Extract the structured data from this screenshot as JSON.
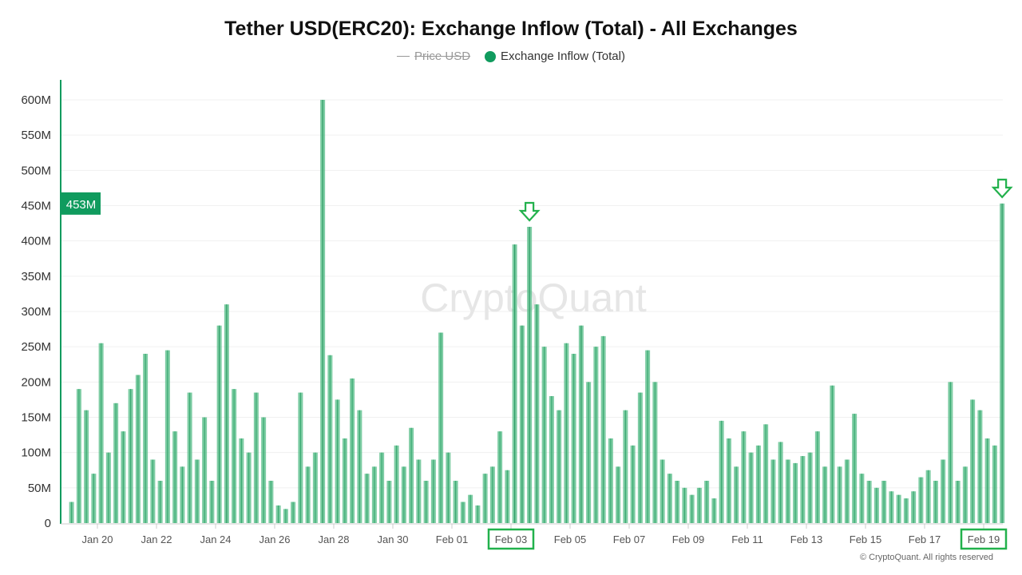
{
  "chart_data": {
    "type": "bar",
    "title": "Tether USD(ERC20): Exchange Inflow (Total) - All Exchanges",
    "legend": [
      {
        "label": "Price USD",
        "hidden": true,
        "color": "#999999"
      },
      {
        "label": "Exchange Inflow (Total)",
        "hidden": false,
        "color": "#109b5e"
      }
    ],
    "legend_placement": "top-center",
    "grid": true,
    "ylim": [
      0,
      630
    ],
    "y_unit": "M",
    "y_ticks": [
      "0",
      "50M",
      "100M",
      "150M",
      "200M",
      "250M",
      "300M",
      "350M",
      "400M",
      "450M",
      "500M",
      "550M",
      "600M"
    ],
    "x_ticks": [
      "Jan 20",
      "Jan 22",
      "Jan 24",
      "Jan 26",
      "Jan 28",
      "Jan 30",
      "Feb 01",
      "Feb 03",
      "Feb 05",
      "Feb 07",
      "Feb 09",
      "Feb 11",
      "Feb 13",
      "Feb 15",
      "Feb 17",
      "Feb 19"
    ],
    "highlighted_x_ticks": [
      "Feb 03",
      "Feb 19"
    ],
    "current_value_label": "453M",
    "highlight_color": "#22b14c",
    "bar_color": "#5cbf8c",
    "watermark": "CryptoQuant",
    "x": [
      "Jan 19 00:00",
      "Jan 19 06:00",
      "Jan 19 12:00",
      "Jan 19 18:00",
      "Jan 20 00:00",
      "Jan 20 06:00",
      "Jan 20 12:00",
      "Jan 20 18:00",
      "Jan 21 00:00",
      "Jan 21 06:00",
      "Jan 21 12:00",
      "Jan 21 18:00",
      "Jan 22 00:00",
      "Jan 22 06:00",
      "Jan 22 12:00",
      "Jan 22 18:00",
      "Jan 23 00:00",
      "Jan 23 06:00",
      "Jan 23 12:00",
      "Jan 23 18:00",
      "Jan 24 00:00",
      "Jan 24 06:00",
      "Jan 24 12:00",
      "Jan 24 18:00",
      "Jan 25 00:00",
      "Jan 25 06:00",
      "Jan 25 12:00",
      "Jan 25 18:00",
      "Jan 26 00:00",
      "Jan 26 06:00",
      "Jan 26 12:00",
      "Jan 26 18:00",
      "Jan 27 00:00",
      "Jan 27 06:00",
      "Jan 27 12:00",
      "Jan 27 18:00",
      "Jan 28 00:00",
      "Jan 28 06:00",
      "Jan 28 12:00",
      "Jan 28 18:00",
      "Jan 29 00:00",
      "Jan 29 06:00",
      "Jan 29 12:00",
      "Jan 29 18:00",
      "Jan 30 00:00",
      "Jan 30 06:00",
      "Jan 30 12:00",
      "Jan 30 18:00",
      "Jan 31 00:00",
      "Jan 31 06:00",
      "Jan 31 12:00",
      "Jan 31 18:00",
      "Feb 01 00:00",
      "Feb 01 06:00",
      "Feb 01 12:00",
      "Feb 01 18:00",
      "Feb 02 00:00",
      "Feb 02 06:00",
      "Feb 02 12:00",
      "Feb 02 18:00",
      "Feb 03 00:00",
      "Feb 03 06:00",
      "Feb 03 12:00",
      "Feb 03 18:00",
      "Feb 04 00:00",
      "Feb 04 06:00",
      "Feb 04 12:00",
      "Feb 04 18:00",
      "Feb 05 00:00",
      "Feb 05 06:00",
      "Feb 05 12:00",
      "Feb 05 18:00",
      "Feb 06 00:00",
      "Feb 06 06:00",
      "Feb 06 12:00",
      "Feb 06 18:00",
      "Feb 07 00:00",
      "Feb 07 06:00",
      "Feb 07 12:00",
      "Feb 07 18:00",
      "Feb 08 00:00",
      "Feb 08 06:00",
      "Feb 08 12:00",
      "Feb 08 18:00",
      "Feb 09 00:00",
      "Feb 09 06:00",
      "Feb 09 12:00",
      "Feb 09 18:00",
      "Feb 10 00:00",
      "Feb 10 06:00",
      "Feb 10 12:00",
      "Feb 10 18:00",
      "Feb 11 00:00",
      "Feb 11 06:00",
      "Feb 11 12:00",
      "Feb 11 18:00",
      "Feb 12 00:00",
      "Feb 12 06:00",
      "Feb 12 12:00",
      "Feb 12 18:00",
      "Feb 13 00:00",
      "Feb 13 06:00",
      "Feb 13 12:00",
      "Feb 13 18:00",
      "Feb 14 00:00",
      "Feb 14 06:00",
      "Feb 14 12:00",
      "Feb 14 18:00",
      "Feb 15 00:00",
      "Feb 15 06:00",
      "Feb 15 12:00",
      "Feb 15 18:00",
      "Feb 16 00:00",
      "Feb 16 06:00",
      "Feb 16 12:00",
      "Feb 16 18:00",
      "Feb 17 00:00",
      "Feb 17 06:00",
      "Feb 17 12:00",
      "Feb 17 18:00",
      "Feb 18 00:00",
      "Feb 18 06:00",
      "Feb 18 12:00",
      "Feb 18 18:00",
      "Feb 19 00:00",
      "Feb 19 06:00",
      "Feb 19 12:00"
    ],
    "values": [
      30,
      190,
      160,
      70,
      255,
      100,
      170,
      130,
      190,
      210,
      240,
      90,
      60,
      245,
      130,
      80,
      185,
      90,
      150,
      60,
      280,
      310,
      190,
      120,
      100,
      185,
      150,
      60,
      25,
      20,
      30,
      185,
      80,
      100,
      600,
      238,
      175,
      120,
      205,
      160,
      70,
      80,
      100,
      60,
      110,
      80,
      135,
      90,
      60,
      90,
      270,
      100,
      60,
      30,
      40,
      25,
      70,
      80,
      130,
      75,
      395,
      280,
      420,
      310,
      250,
      180,
      160,
      255,
      240,
      280,
      200,
      250,
      265,
      120,
      80,
      160,
      110,
      185,
      245,
      200,
      90,
      70,
      60,
      50,
      40,
      50,
      60,
      35,
      145,
      120,
      80,
      130,
      100,
      110,
      140,
      90,
      115,
      90,
      85,
      95,
      100,
      130,
      80,
      195,
      80,
      90,
      155,
      70,
      60,
      50,
      60,
      45,
      40,
      35,
      45,
      65,
      75,
      60,
      90,
      200,
      60,
      80,
      175,
      160,
      120,
      110,
      453
    ],
    "arrow_markers": [
      "Feb 03 12:00",
      "Feb 19 12:00"
    ]
  },
  "footer": "© CryptoQuant. All rights reserved"
}
